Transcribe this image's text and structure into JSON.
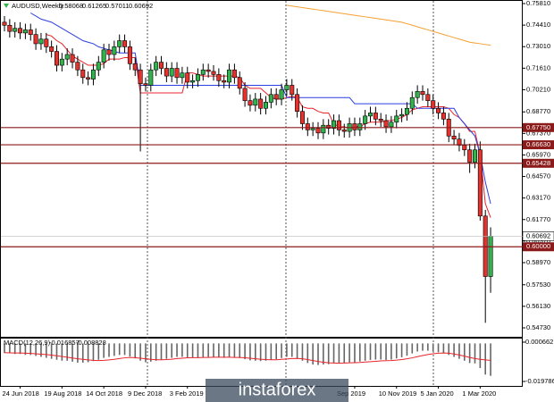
{
  "chart_data": {
    "type": "candlestick",
    "title": "AUDUSD,Weekly",
    "categories": [
      null,
      null,
      null,
      "24 Jun 2018",
      null,
      null,
      null,
      null,
      null,
      null,
      null,
      "19 Aug 2018",
      null,
      null,
      null,
      null,
      null,
      null,
      null,
      "14 Oct 2018",
      null,
      null,
      null,
      null,
      null,
      null,
      null,
      "9 Dec 2018",
      null,
      null,
      null,
      null,
      null,
      null,
      null,
      "3 Feb 2019",
      null,
      null,
      null,
      null,
      null,
      null,
      null,
      null,
      null,
      null,
      null,
      null,
      null,
      null,
      null,
      null,
      null,
      null,
      null,
      null,
      null,
      null,
      null,
      null,
      null,
      null,
      null,
      null,
      null,
      null,
      null,
      "Sep 2019",
      null,
      null,
      null,
      null,
      null,
      null,
      null,
      "10 Nov 2019",
      null,
      null,
      null,
      null,
      null,
      null,
      null,
      "5 Jan 2020",
      null,
      null,
      null,
      null,
      null,
      null,
      null,
      "1 Mar 2020",
      null,
      null
    ],
    "open": [
      0.746,
      0.744,
      0.74,
      0.742,
      0.739,
      0.741,
      0.738,
      0.732,
      0.735,
      0.73,
      0.727,
      0.718,
      0.722,
      0.725,
      0.72,
      0.715,
      0.71,
      0.709,
      0.715,
      0.72,
      0.728,
      0.725,
      0.73,
      0.734,
      0.73,
      0.719,
      0.715,
      0.706,
      0.705,
      0.715,
      0.72,
      0.716,
      0.711,
      0.716,
      0.71,
      0.713,
      0.707,
      0.708,
      0.712,
      0.715,
      0.714,
      0.712,
      0.708,
      0.707,
      0.715,
      0.71,
      0.703,
      0.695,
      0.692,
      0.696,
      0.69,
      0.694,
      0.699,
      0.696,
      0.702,
      0.705,
      0.699,
      0.688,
      0.68,
      0.676,
      0.677,
      0.674,
      0.679,
      0.677,
      0.682,
      0.676,
      0.675,
      0.68,
      0.676,
      0.68,
      0.685,
      0.687,
      0.683,
      0.682,
      0.678,
      0.681,
      0.685,
      0.686,
      0.69,
      0.697,
      0.701,
      0.699,
      0.695,
      0.69,
      0.687,
      0.683,
      0.672,
      0.67,
      0.666,
      0.663,
      0.655,
      0.663,
      0.62,
      0.58068
    ],
    "high": [
      0.75,
      0.748,
      0.746,
      0.746,
      0.745,
      0.745,
      0.742,
      0.739,
      0.739,
      0.734,
      0.731,
      0.726,
      0.729,
      0.729,
      0.724,
      0.719,
      0.714,
      0.719,
      0.724,
      0.732,
      0.732,
      0.734,
      0.738,
      0.738,
      0.734,
      0.723,
      0.719,
      0.71,
      0.719,
      0.724,
      0.724,
      0.72,
      0.72,
      0.72,
      0.717,
      0.717,
      0.712,
      0.716,
      0.719,
      0.719,
      0.718,
      0.716,
      0.712,
      0.719,
      0.719,
      0.714,
      0.707,
      0.699,
      0.7,
      0.7,
      0.698,
      0.703,
      0.703,
      0.706,
      0.709,
      0.709,
      0.703,
      0.692,
      0.684,
      0.681,
      0.681,
      0.683,
      0.683,
      0.686,
      0.686,
      0.68,
      0.684,
      0.684,
      0.684,
      0.689,
      0.691,
      0.691,
      0.687,
      0.686,
      0.685,
      0.689,
      0.69,
      0.694,
      0.701,
      0.705,
      0.705,
      0.703,
      0.699,
      0.694,
      0.691,
      0.687,
      0.676,
      0.674,
      0.67,
      0.667,
      0.667,
      0.6685,
      0.624,
      0.61265
    ],
    "low": [
      0.74,
      0.736,
      0.736,
      0.735,
      0.735,
      0.734,
      0.728,
      0.728,
      0.726,
      0.723,
      0.714,
      0.714,
      0.718,
      0.716,
      0.711,
      0.706,
      0.705,
      0.705,
      0.711,
      0.716,
      0.721,
      0.721,
      0.726,
      0.726,
      0.715,
      0.711,
      0.662,
      0.701,
      0.701,
      0.711,
      0.712,
      0.707,
      0.707,
      0.706,
      0.706,
      0.703,
      0.703,
      0.704,
      0.708,
      0.71,
      0.708,
      0.704,
      0.703,
      0.703,
      0.706,
      0.699,
      0.691,
      0.688,
      0.688,
      0.686,
      0.686,
      0.69,
      0.692,
      0.692,
      0.698,
      0.695,
      0.684,
      0.676,
      0.672,
      0.672,
      0.67,
      0.67,
      0.673,
      0.673,
      0.672,
      0.671,
      0.671,
      0.672,
      0.672,
      0.676,
      0.681,
      0.679,
      0.678,
      0.674,
      0.674,
      0.677,
      0.681,
      0.682,
      0.686,
      0.693,
      0.695,
      0.691,
      0.686,
      0.683,
      0.679,
      0.668,
      0.666,
      0.662,
      0.659,
      0.648,
      0.651,
      0.617,
      0.5506,
      0.57011
    ],
    "close": [
      0.744,
      0.74,
      0.742,
      0.739,
      0.741,
      0.738,
      0.732,
      0.735,
      0.73,
      0.727,
      0.718,
      0.722,
      0.725,
      0.72,
      0.715,
      0.71,
      0.709,
      0.715,
      0.72,
      0.728,
      0.725,
      0.73,
      0.734,
      0.73,
      0.719,
      0.715,
      0.706,
      0.705,
      0.715,
      0.72,
      0.716,
      0.711,
      0.716,
      0.71,
      0.713,
      0.707,
      0.708,
      0.712,
      0.715,
      0.714,
      0.712,
      0.708,
      0.707,
      0.715,
      0.71,
      0.703,
      0.695,
      0.692,
      0.696,
      0.69,
      0.694,
      0.699,
      0.696,
      0.702,
      0.705,
      0.699,
      0.688,
      0.68,
      0.676,
      0.677,
      0.674,
      0.679,
      0.677,
      0.682,
      0.676,
      0.675,
      0.68,
      0.676,
      0.68,
      0.685,
      0.687,
      0.683,
      0.682,
      0.678,
      0.681,
      0.685,
      0.686,
      0.69,
      0.697,
      0.701,
      0.699,
      0.695,
      0.69,
      0.687,
      0.683,
      0.672,
      0.67,
      0.666,
      0.663,
      0.655,
      0.663,
      0.62,
      0.58068,
      0.60692
    ],
    "up_color": "#2fb34a",
    "down_color": "#e5322d",
    "ylim": [
      0.5473,
      0.7581
    ],
    "yticks": [
      {
        "value": 0.7581,
        "label": "0.75810"
      },
      {
        "value": 0.7441,
        "label": "0.74410"
      },
      {
        "value": 0.7301,
        "label": "0.73010"
      },
      {
        "value": 0.7161,
        "label": "0.71610"
      },
      {
        "value": 0.7021,
        "label": "0.70210"
      },
      {
        "value": 0.6877,
        "label": "0.68770"
      },
      {
        "value": 0.6737,
        "label": "0.67370"
      },
      {
        "value": 0.6597,
        "label": "0.65970"
      },
      {
        "value": 0.6457,
        "label": "0.64570"
      },
      {
        "value": 0.6317,
        "label": "0.63170"
      },
      {
        "value": 0.6177,
        "label": "0.61770"
      },
      {
        "value": 0.6037,
        "label": "0.60370"
      },
      {
        "value": 0.5897,
        "label": "0.58970"
      },
      {
        "value": 0.5753,
        "label": "0.57530"
      },
      {
        "value": 0.5613,
        "label": "0.56130"
      },
      {
        "value": 0.5473,
        "label": "0.54730"
      }
    ],
    "levels": [
      {
        "value": 0.6775,
        "label": "0.67750"
      },
      {
        "value": 0.6663,
        "label": "0.66630"
      },
      {
        "value": 0.65428,
        "label": "0.65428"
      },
      {
        "value": 0.6,
        "label": "0.60000"
      }
    ],
    "level_color": "#8b1a1a",
    "lines": [
      {
        "color": "#e8242b",
        "values": [
          null,
          null,
          null,
          null,
          null,
          null,
          null,
          null,
          0.738,
          0.737,
          0.734,
          0.732,
          0.728,
          0.724,
          0.722,
          0.72,
          0.718,
          0.718,
          0.718,
          0.719,
          0.722,
          0.722,
          0.722,
          0.723,
          0.723,
          0.723,
          0.7,
          0.7,
          0.7,
          0.7,
          0.7,
          0.7,
          0.7,
          0.7,
          0.7,
          0.713,
          0.713,
          0.712,
          0.711,
          0.711,
          0.711,
          0.711,
          0.711,
          0.711,
          0.711,
          0.71,
          0.705,
          0.703,
          0.703,
          0.703,
          0.7,
          0.697,
          0.696,
          0.696,
          0.697,
          0.698,
          0.697,
          0.691,
          0.69,
          0.69,
          0.688,
          0.687,
          0.687,
          0.68,
          0.678,
          0.678,
          0.677,
          0.678,
          0.678,
          0.68,
          0.681,
          0.681,
          0.681,
          0.682,
          0.682,
          0.683,
          0.684,
          0.686,
          0.689,
          0.69,
          0.691,
          0.691,
          0.691,
          0.691,
          0.691,
          0.69,
          0.686,
          0.684,
          0.68,
          0.675,
          0.675,
          0.66,
          0.628,
          0.619
        ]
      },
      {
        "color": "#2a3fe0",
        "values": [
          null,
          null,
          null,
          null,
          null,
          0.752,
          0.75,
          0.748,
          0.747,
          0.746,
          0.744,
          0.742,
          0.74,
          0.738,
          0.736,
          0.734,
          0.733,
          0.732,
          0.73,
          0.729,
          0.728,
          0.727,
          0.726,
          0.726,
          0.726,
          0.726,
          0.705,
          0.705,
          0.705,
          0.705,
          0.705,
          0.705,
          0.705,
          0.705,
          0.705,
          0.705,
          0.705,
          0.705,
          0.705,
          0.705,
          0.705,
          0.705,
          0.705,
          0.705,
          0.705,
          0.705,
          0.705,
          0.705,
          0.705,
          0.705,
          0.705,
          0.705,
          0.705,
          0.705,
          0.697,
          0.697,
          0.697,
          0.697,
          0.697,
          0.697,
          0.697,
          0.697,
          0.697,
          0.697,
          0.697,
          0.697,
          0.697,
          0.693,
          0.693,
          0.693,
          0.693,
          0.693,
          0.693,
          0.693,
          0.693,
          0.693,
          0.693,
          0.693,
          0.693,
          0.69,
          0.69,
          0.69,
          0.69,
          0.69,
          0.69,
          0.69,
          0.69,
          0.684,
          0.68,
          0.676,
          0.672,
          0.66,
          0.642,
          0.628
        ]
      },
      {
        "color": "#f5a030",
        "values": [
          null,
          null,
          null,
          null,
          null,
          null,
          null,
          null,
          null,
          null,
          null,
          null,
          null,
          null,
          null,
          null,
          null,
          null,
          null,
          null,
          null,
          null,
          null,
          null,
          null,
          null,
          null,
          null,
          null,
          null,
          null,
          null,
          null,
          null,
          null,
          null,
          null,
          null,
          null,
          null,
          null,
          null,
          null,
          null,
          null,
          null,
          null,
          null,
          null,
          null,
          null,
          null,
          null,
          null,
          0.757,
          0.7565,
          0.756,
          0.7555,
          0.755,
          0.7545,
          0.754,
          0.7535,
          0.753,
          0.7525,
          0.752,
          0.7515,
          0.751,
          0.7505,
          0.75,
          0.7495,
          0.749,
          0.7485,
          0.748,
          0.7475,
          0.747,
          0.7465,
          0.746,
          0.745,
          0.744,
          0.743,
          0.742,
          0.741,
          0.74,
          0.739,
          0.738,
          0.737,
          0.736,
          0.735,
          0.734,
          0.733,
          0.7325,
          0.732,
          0.7315,
          0.731
        ]
      }
    ],
    "macd": {
      "title": "MACD(12,26,9)",
      "ylim": [
        -0.019786,
        0.000662
      ],
      "yticks": [
        0.000662,
        -0.019786
      ],
      "hist_color": "#666666",
      "signal_color": "#e8242b",
      "hist": [
        -0.005,
        -0.005,
        -0.0055,
        -0.0055,
        -0.006,
        -0.006,
        -0.0065,
        -0.007,
        -0.0075,
        -0.008,
        -0.0085,
        -0.009,
        -0.009,
        -0.0095,
        -0.01,
        -0.01,
        -0.0098,
        -0.0092,
        -0.0085,
        -0.0075,
        -0.007,
        -0.0065,
        -0.006,
        -0.006,
        -0.0068,
        -0.0078,
        -0.009,
        -0.0098,
        -0.0095,
        -0.009,
        -0.0085,
        -0.008,
        -0.0075,
        -0.007,
        -0.007,
        -0.0072,
        -0.0075,
        -0.0075,
        -0.0072,
        -0.007,
        -0.007,
        -0.0072,
        -0.0075,
        -0.0072,
        -0.0072,
        -0.0076,
        -0.0082,
        -0.0088,
        -0.009,
        -0.0092,
        -0.009,
        -0.0085,
        -0.0082,
        -0.0076,
        -0.007,
        -0.007,
        -0.0078,
        -0.009,
        -0.0102,
        -0.011,
        -0.0112,
        -0.011,
        -0.0108,
        -0.0102,
        -0.0102,
        -0.0102,
        -0.0098,
        -0.0098,
        -0.0094,
        -0.009,
        -0.0086,
        -0.0084,
        -0.0084,
        -0.0086,
        -0.0084,
        -0.0078,
        -0.0072,
        -0.0064,
        -0.0052,
        -0.0042,
        -0.0038,
        -0.0038,
        -0.0042,
        -0.0046,
        -0.005,
        -0.006,
        -0.007,
        -0.008,
        -0.009,
        -0.0102,
        -0.0104,
        -0.0128,
        -0.0162,
        -0.016857
      ],
      "signal": [
        -0.0048,
        -0.0049,
        -0.005,
        -0.005,
        -0.0051,
        -0.0052,
        -0.0054,
        -0.0056,
        -0.0058,
        -0.0061,
        -0.0064,
        -0.0068,
        -0.0072,
        -0.0076,
        -0.008,
        -0.0083,
        -0.0086,
        -0.0088,
        -0.0089,
        -0.0088,
        -0.0086,
        -0.0083,
        -0.0079,
        -0.0075,
        -0.0073,
        -0.0074,
        -0.0077,
        -0.008,
        -0.0083,
        -0.0085,
        -0.0085,
        -0.0084,
        -0.0082,
        -0.0079,
        -0.0077,
        -0.0075,
        -0.0074,
        -0.0074,
        -0.0073,
        -0.0073,
        -0.0072,
        -0.0072,
        -0.0072,
        -0.0072,
        -0.0073,
        -0.0073,
        -0.0075,
        -0.0077,
        -0.008,
        -0.0082,
        -0.0084,
        -0.0085,
        -0.0085,
        -0.0083,
        -0.0081,
        -0.0079,
        -0.0078,
        -0.008,
        -0.0084,
        -0.0089,
        -0.0094,
        -0.0098,
        -0.0101,
        -0.0102,
        -0.0103,
        -0.0102,
        -0.0101,
        -0.01,
        -0.0099,
        -0.0097,
        -0.0095,
        -0.0093,
        -0.0091,
        -0.009,
        -0.0089,
        -0.0087,
        -0.0084,
        -0.008,
        -0.0075,
        -0.0069,
        -0.0063,
        -0.0058,
        -0.0054,
        -0.0051,
        -0.005,
        -0.0051,
        -0.0055,
        -0.006,
        -0.0066,
        -0.0073,
        -0.0079,
        -0.0083,
        -0.0086,
        -0.008828
      ]
    },
    "watermark": "instaforex"
  }
}
